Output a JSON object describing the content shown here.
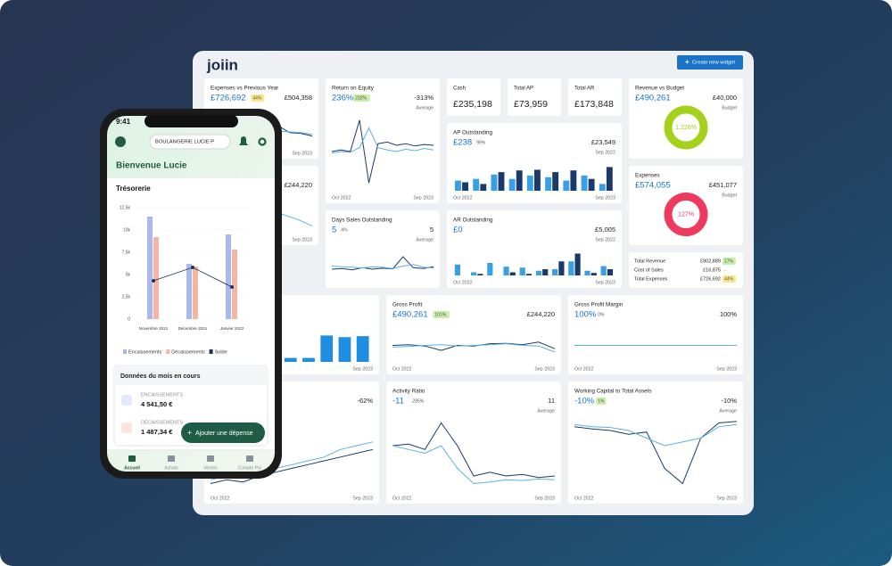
{
  "dashboard": {
    "logo": "joiin",
    "create_button": "Create new widget",
    "widgets": [
      {
        "title": "Expenses vs Previous Year",
        "value": "£726,692",
        "badge": "44%",
        "badge_color": "#fde68a",
        "target": "£504,358",
        "x_end": "Sep 2023",
        "chart": {
          "type": "line",
          "ylim": [
            0,
            100
          ],
          "series": [
            {
              "color": "#1b3a6b",
              "values": [
                60,
                62,
                58,
                61,
                59,
                63,
                60,
                40,
                38,
                30
              ]
            },
            {
              "color": "#5bb0e8",
              "values": [
                55,
                57,
                60,
                52,
                50,
                48,
                45,
                42,
                40,
                35
              ]
            }
          ]
        }
      },
      {
        "title": "Return on Equity",
        "value": "236%",
        "badge": "232%",
        "badge_color": "#c8f0a8",
        "target": "-313%",
        "note": "Average",
        "x_start": "Oct 2022",
        "x_end": "Sep 2023",
        "chart": {
          "type": "line",
          "ylim": [
            0,
            100
          ],
          "series": [
            {
              "color": "#1b3a6b",
              "values": [
                50,
                52,
                50,
                90,
                10,
                60,
                62,
                58,
                60,
                57,
                59,
                58
              ]
            },
            {
              "color": "#5bb0e8",
              "values": [
                48,
                50,
                49,
                55,
                80,
                55,
                52,
                50,
                53,
                51,
                54,
                52
              ]
            }
          ]
        }
      },
      {
        "title": "AP Outstanding",
        "value": "£238",
        "badge": "99%",
        "target": "£23,549",
        "note": "Sep 2022",
        "x_start": "Oct 2022",
        "x_end": "Sep 2023",
        "chart": {
          "type": "bar",
          "ylim": [
            0,
            100
          ],
          "series": [
            {
              "color": "#3aa0e6",
              "values": [
                30,
                35,
                48,
                35,
                45,
                40,
                30,
                45,
                20
              ]
            },
            {
              "color": "#1b3a6b",
              "values": [
                25,
                20,
                55,
                60,
                62,
                55,
                60,
                35,
                70
              ]
            }
          ]
        }
      },
      {
        "title": "Revenue vs Budget",
        "value": "£490,261",
        "target": "£40,000",
        "note": "Budget",
        "chart": {
          "type": "donut",
          "value": 1226,
          "label": "1,226%",
          "color": "#a3d11c"
        }
      },
      {
        "target": "£244,220",
        "x_end": "Sep 2023",
        "chart": {
          "type": "line",
          "ylim": [
            0,
            100
          ],
          "series": [
            {
              "color": "#5bb0e8",
              "values": [
                70,
                68,
                65,
                60,
                62,
                55,
                40,
                20
              ]
            }
          ]
        }
      },
      {
        "title": "Days Sales Outstanding",
        "value": "5",
        "badge": "4%",
        "target": "5",
        "note": "Average",
        "chart": {
          "type": "line",
          "ylim": [
            0,
            100
          ],
          "series": [
            {
              "color": "#1b3a6b",
              "values": [
                20,
                22,
                18,
                25,
                20,
                23,
                21,
                60,
                25,
                22,
                28
              ]
            },
            {
              "color": "#5bb0e8",
              "values": [
                30,
                28,
                26,
                24,
                28,
                26,
                22,
                30,
                35,
                26,
                24
              ]
            }
          ]
        }
      },
      {
        "title": "AR Outstanding",
        "value": "£0",
        "target": "£5,005",
        "note": "Sep 2022",
        "x_start": "Oct 2022",
        "x_end": "Sep 2023",
        "chart": {
          "type": "bar",
          "ylim": [
            0,
            100
          ],
          "series": [
            {
              "color": "#3aa0e6",
              "values": [
                35,
                10,
                40,
                28,
                25,
                15,
                20,
                45,
                15,
                30
              ]
            },
            {
              "color": "#1b3a6b",
              "values": [
                0,
                5,
                0,
                10,
                5,
                20,
                45,
                70,
                8,
                20
              ]
            }
          ]
        }
      },
      {
        "title": "Expenses",
        "value": "£574,055",
        "target": "£451,077",
        "note": "Budget",
        "chart": {
          "type": "donut",
          "value": 127,
          "label": "127%",
          "color": "#ee3a5c"
        }
      },
      {
        "x_end": "Sep 2023",
        "chart": {
          "type": "bar",
          "ylim": [
            0,
            100
          ],
          "series": [
            {
              "color": "#1f8ee0",
              "values": [
                12,
                12,
                12,
                12,
                12,
                12,
                80,
                75,
                78
              ]
            }
          ]
        }
      },
      {
        "title": "Gross Profit",
        "value": "£490,261",
        "badge": "101%",
        "badge_color": "#c8f0a8",
        "target": "£244,220",
        "x_start": "Oct 2022",
        "x_end": "Sep 2023",
        "chart": {
          "type": "line",
          "ylim": [
            0,
            100
          ],
          "series": [
            {
              "color": "#1b3a6b",
              "values": [
                50,
                52,
                48,
                35,
                50,
                48,
                55,
                56,
                52,
                60,
                40
              ]
            },
            {
              "color": "#5bb0e8",
              "values": [
                45,
                47,
                50,
                52,
                48,
                50,
                52,
                55,
                50,
                48,
                30
              ]
            }
          ]
        }
      },
      {
        "title": "Gross Profit Margin",
        "value": "100%",
        "badge": "0%",
        "target": "100%",
        "x_start": "Oct 2022",
        "x_end": "Sep 2023",
        "chart": {
          "type": "line",
          "ylim": [
            0,
            100
          ],
          "series": [
            {
              "color": "#5bb0e8",
              "values": [
                50,
                50,
                50,
                50,
                50,
                50,
                50,
                50,
                50,
                50
              ]
            }
          ]
        }
      },
      {
        "target": "-62%",
        "x_start": "Oct 2022",
        "x_end": "Sep 2023",
        "chart": {
          "type": "line",
          "ylim": [
            0,
            100
          ],
          "series": [
            {
              "color": "#5bb0e8",
              "values": [
                15,
                20,
                25,
                22,
                30,
                35,
                40,
                45,
                55,
                60,
                65
              ]
            },
            {
              "color": "#1b3a6b",
              "values": [
                10,
                15,
                12,
                20,
                25,
                30,
                35,
                40,
                45,
                50,
                55
              ]
            }
          ]
        }
      },
      {
        "title": "Activity Ratio",
        "value": "-11",
        "badge": "-285%",
        "target": "11",
        "note": "Average",
        "x_start": "Oct 2022",
        "x_end": "Sep 2023",
        "chart": {
          "type": "line",
          "ylim": [
            0,
            100
          ],
          "series": [
            {
              "color": "#1b3a6b",
              "values": [
                60,
                62,
                55,
                90,
                60,
                20,
                25,
                20,
                22,
                18,
                20
              ]
            },
            {
              "color": "#5bb0e8",
              "values": [
                60,
                55,
                50,
                60,
                30,
                10,
                12,
                15,
                14,
                16,
                15
              ]
            }
          ]
        }
      },
      {
        "title": "Working Capital to Total Assets",
        "value": "-10%",
        "badge": "1%",
        "badge_color": "#c8f0a8",
        "target": "-10%",
        "note": "Average",
        "x_start": "Oct 2022",
        "x_end": "Sep 2023",
        "chart": {
          "type": "line",
          "ylim": [
            0,
            100
          ],
          "series": [
            {
              "color": "#1b3a6b",
              "values": [
                85,
                82,
                80,
                75,
                78,
                30,
                10,
                70,
                90,
                92
              ]
            },
            {
              "color": "#5bb0e8",
              "values": [
                88,
                85,
                84,
                80,
                70,
                60,
                65,
                70,
                85,
                88
              ]
            }
          ]
        }
      }
    ],
    "kpis": [
      {
        "title": "Cash",
        "value": "£235,198"
      },
      {
        "title": "Total AP",
        "value": "£73,959"
      },
      {
        "title": "Total AR",
        "value": "£173,848"
      }
    ],
    "totals": [
      {
        "label": "Total Revenue",
        "value": "£802,889",
        "badge": "17%",
        "badge_color": "#c8f0a8"
      },
      {
        "label": "Cost of Sales",
        "value": "£16,875",
        "badge": "-"
      },
      {
        "label": "Total Expenses",
        "value": "£726,692",
        "badge": "44%",
        "badge_color": "#fde68a"
      }
    ]
  },
  "phone": {
    "time": "9:41",
    "company": "BOULANGERIE LUCIE P",
    "welcome": "Bienvenue Lucie",
    "section": "Trésorerie",
    "chart": {
      "type": "bar",
      "categories": [
        "Novembre 2021",
        "Décembre 2021",
        "Janvier 2022"
      ],
      "ylim": [
        0,
        12500
      ],
      "yticks": [
        0,
        {
          "value": 2500,
          "label": "2,5k"
        },
        {
          "value": 5000,
          "label": "5k"
        },
        {
          "value": 7500,
          "label": "7,5k"
        },
        {
          "value": 10000,
          "label": "10k"
        },
        {
          "value": 12500,
          "label": "12,5k"
        }
      ],
      "series": [
        {
          "name": "Encaissements",
          "color": "#a9b8f2",
          "values": [
            11500,
            6200,
            9500
          ]
        },
        {
          "name": "Décaissements",
          "color": "#f4b5a3",
          "values": [
            9200,
            5900,
            7800
          ]
        },
        {
          "name": "Solde",
          "type": "line",
          "color": "#1e2f5c",
          "values": [
            4300,
            5800,
            3600
          ]
        }
      ]
    },
    "month_card": {
      "title": "Données du mois en cours",
      "in_label": "ENCAISSEMENTS",
      "in_value": "4 541,50 €",
      "out_label": "DÉCAISSEMENTS",
      "out_value": "1 487,34 €"
    },
    "button": "Ajouter une dépense",
    "tabs": [
      "Accueil",
      "Achats",
      "Ventes",
      "Compte Pro"
    ]
  }
}
